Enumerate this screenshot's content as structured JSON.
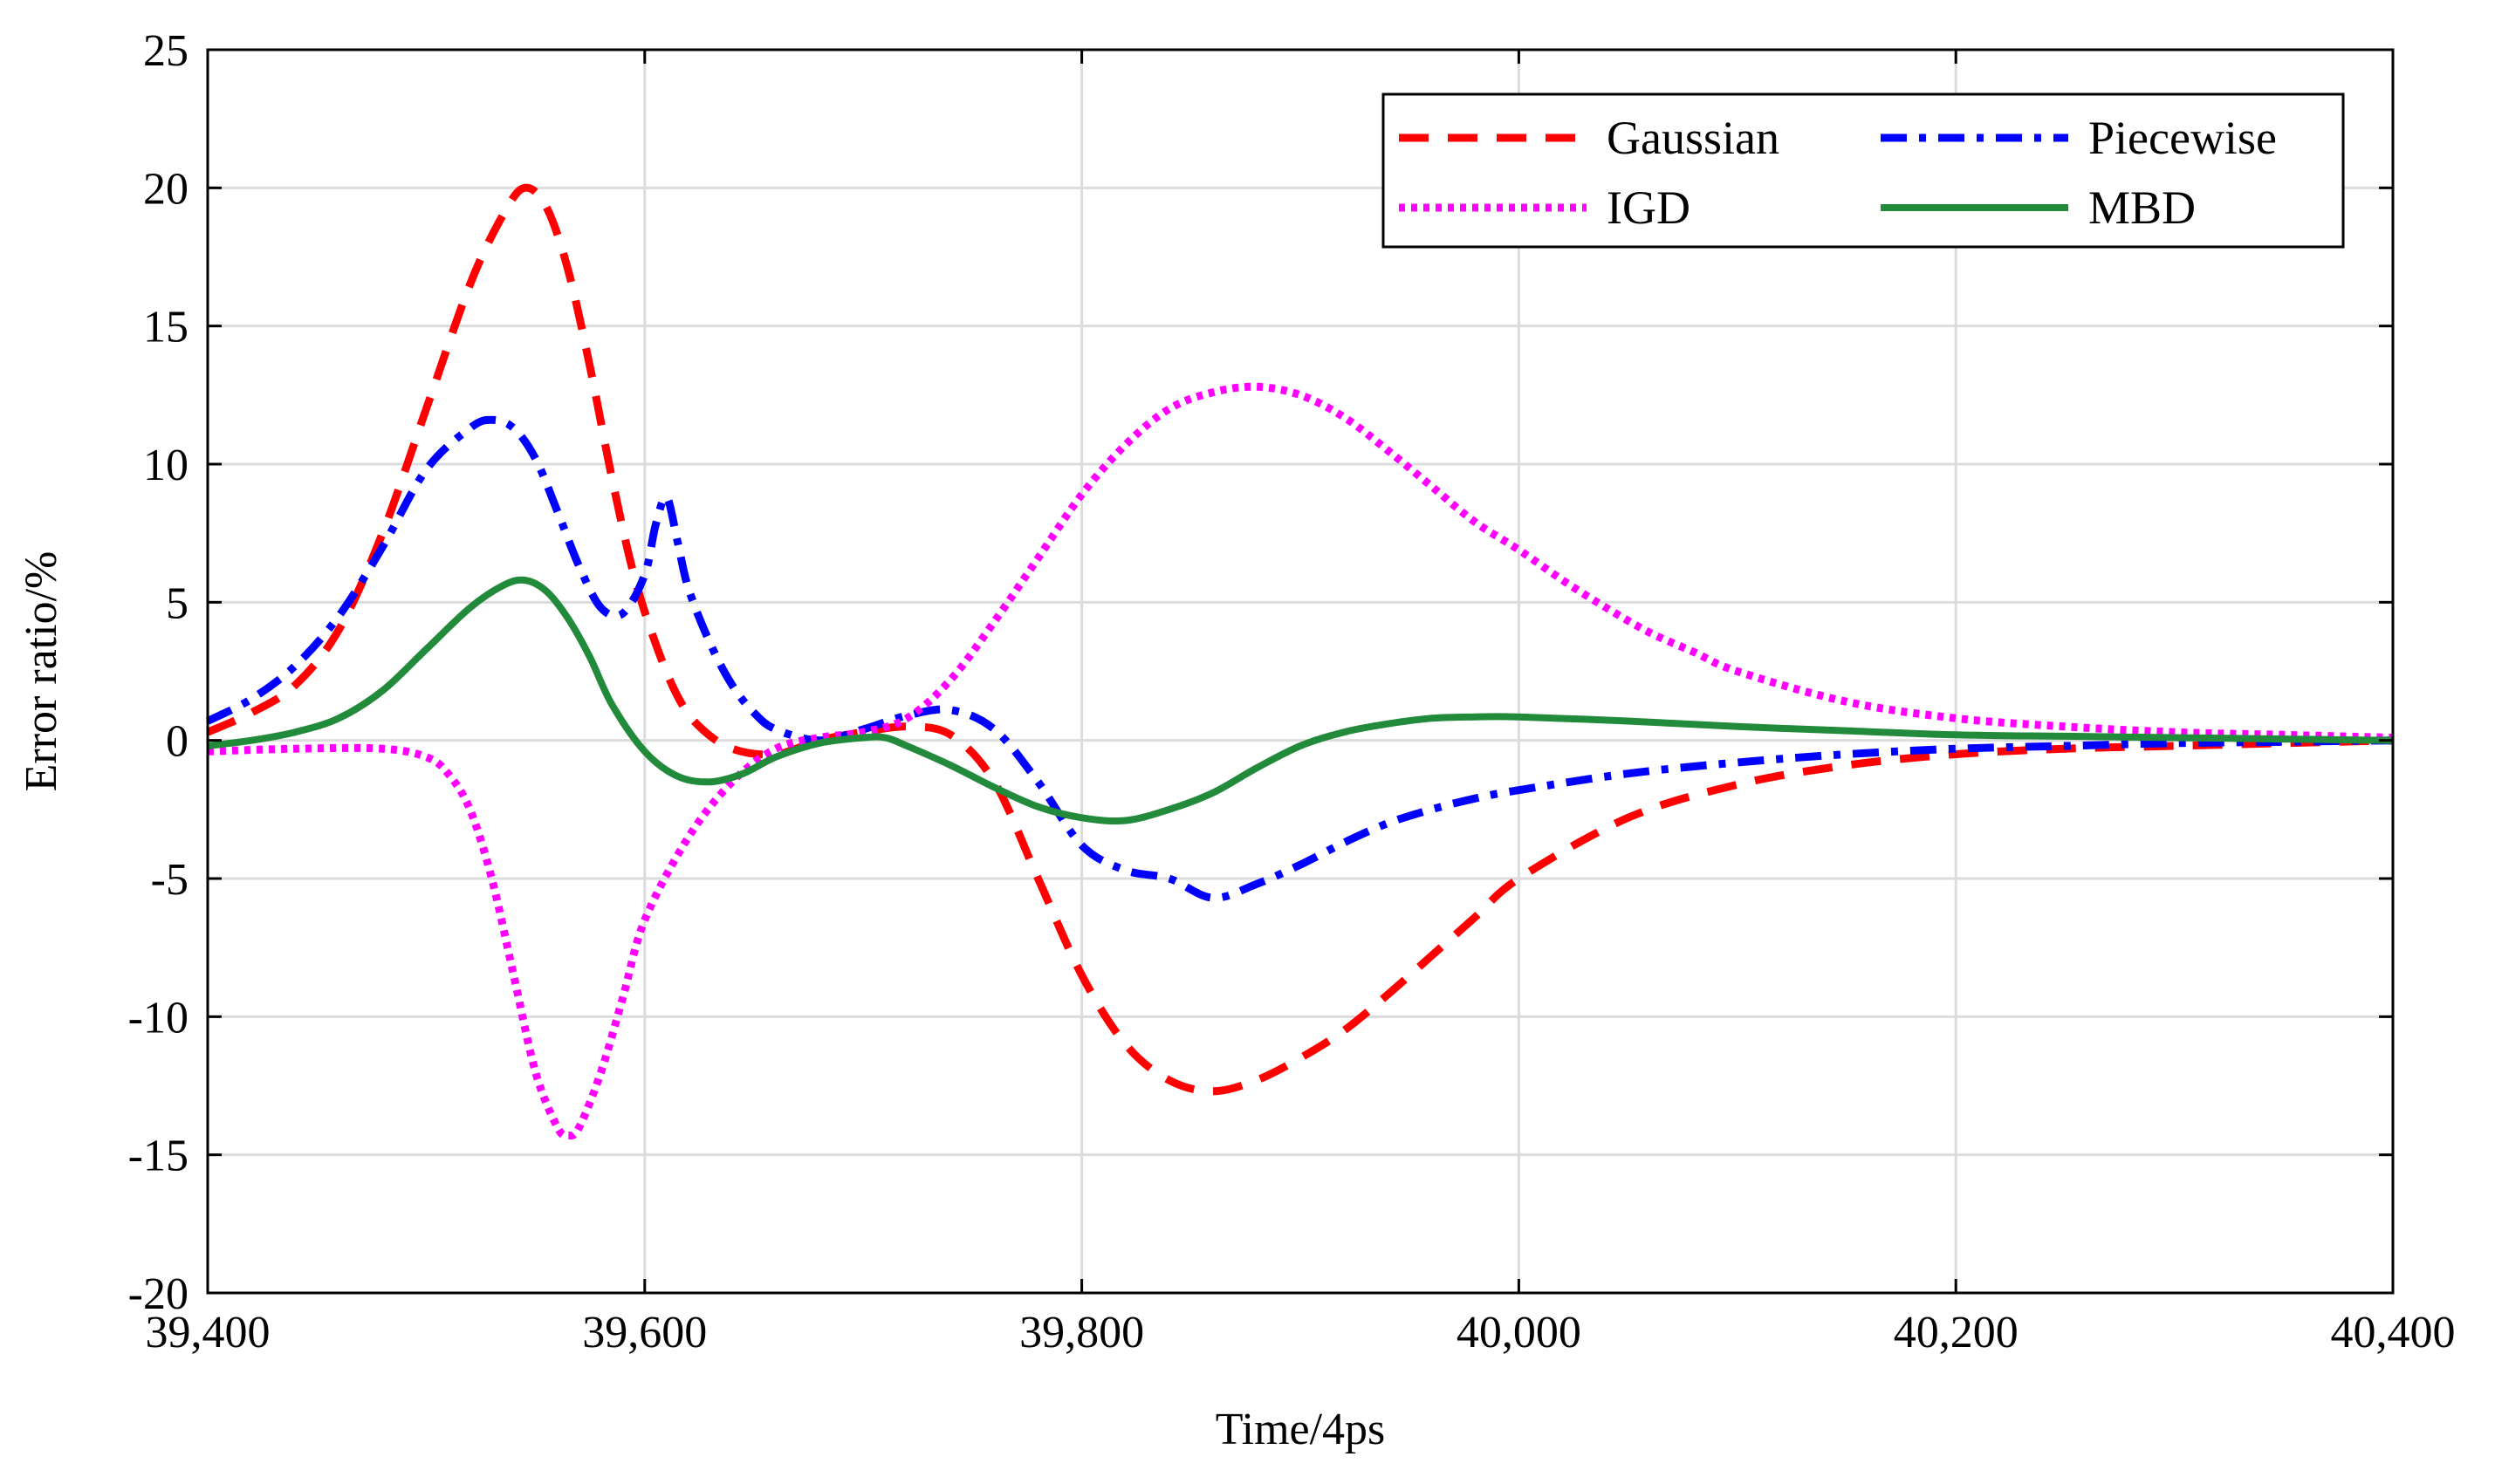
{
  "chart_data": {
    "type": "line",
    "title": "",
    "xlabel": "Time/4ps",
    "ylabel": "Error ratio/%",
    "xlim": [
      39400,
      40400
    ],
    "ylim": [
      -20,
      25
    ],
    "grid": true,
    "legend_position": "top-right",
    "xticks": [
      39400,
      39600,
      39800,
      40000,
      40200,
      40400
    ],
    "xtick_labels": [
      "39,400",
      "39,600",
      "39,800",
      "40,000",
      "40,200",
      "40,400"
    ],
    "yticks": [
      25,
      20,
      15,
      10,
      5,
      0,
      -5,
      -10,
      -15,
      -20
    ],
    "ytick_labels": [
      "25",
      "20",
      "15",
      "10",
      "5",
      "0",
      "-5",
      "-10",
      "-15",
      "-20"
    ],
    "series": [
      {
        "name": "Gaussian",
        "color": "#ff0000",
        "style": "dashed",
        "x": [
          39400,
          39420,
          39440,
          39460,
          39480,
          39500,
          39520,
          39535,
          39545,
          39555,
          39565,
          39575,
          39585,
          39595,
          39605,
          39615,
          39625,
          39640,
          39660,
          39680,
          39700,
          39720,
          39740,
          39760,
          39780,
          39800,
          39820,
          39840,
          39860,
          39880,
          39900,
          39920,
          39940,
          39960,
          39980,
          40000,
          40050,
          40100,
          40150,
          40200,
          40250,
          40300,
          40350,
          40400
        ],
        "y": [
          0.3,
          1.0,
          2.0,
          4.0,
          7.5,
          12.0,
          16.5,
          19.0,
          20.0,
          19.3,
          17.0,
          13.5,
          9.5,
          6.0,
          3.5,
          1.6,
          0.5,
          -0.3,
          -0.5,
          0.0,
          0.3,
          0.5,
          0.2,
          -1.5,
          -5.0,
          -8.5,
          -11.0,
          -12.3,
          -12.7,
          -12.3,
          -11.5,
          -10.5,
          -9.2,
          -7.8,
          -6.4,
          -5.0,
          -2.8,
          -1.6,
          -0.9,
          -0.5,
          -0.3,
          -0.2,
          -0.1,
          0.0
        ]
      },
      {
        "name": "Piecewise",
        "color": "#0000ff",
        "style": "dash-dot",
        "x": [
          39400,
          39420,
          39440,
          39460,
          39480,
          39500,
          39520,
          39530,
          39540,
          39550,
          39560,
          39570,
          39580,
          39590,
          39600,
          39605,
          39610,
          39615,
          39620,
          39630,
          39640,
          39650,
          39660,
          39680,
          39700,
          39720,
          39740,
          39760,
          39780,
          39800,
          39820,
          39840,
          39860,
          39880,
          39900,
          39920,
          39940,
          39960,
          39980,
          40000,
          40050,
          40100,
          40150,
          40200,
          40250,
          40300,
          40350,
          40400
        ],
        "y": [
          0.7,
          1.5,
          2.7,
          4.5,
          7.0,
          9.8,
          11.3,
          11.6,
          11.3,
          10.2,
          8.3,
          6.3,
          4.8,
          4.6,
          6.0,
          7.8,
          8.8,
          7.2,
          5.5,
          3.5,
          2.0,
          1.0,
          0.4,
          0.0,
          0.4,
          0.9,
          1.1,
          0.4,
          -1.5,
          -3.8,
          -4.7,
          -5.0,
          -5.7,
          -5.2,
          -4.5,
          -3.7,
          -3.0,
          -2.5,
          -2.1,
          -1.8,
          -1.2,
          -0.8,
          -0.5,
          -0.3,
          -0.2,
          -0.1,
          -0.05,
          0.0
        ]
      },
      {
        "name": "IGD",
        "color": "#ff00ff",
        "style": "dotted",
        "x": [
          39400,
          39440,
          39480,
          39500,
          39510,
          39520,
          39530,
          39540,
          39550,
          39560,
          39565,
          39570,
          39580,
          39590,
          39600,
          39620,
          39640,
          39660,
          39680,
          39700,
          39720,
          39740,
          39760,
          39780,
          39800,
          39820,
          39840,
          39860,
          39880,
          39900,
          39920,
          39940,
          39960,
          39980,
          40000,
          40020,
          40040,
          40060,
          40080,
          40100,
          40150,
          40200,
          40250,
          40300,
          40350,
          40400
        ],
        "y": [
          -0.4,
          -0.3,
          -0.3,
          -0.6,
          -1.2,
          -2.5,
          -5.0,
          -8.5,
          -12.0,
          -14.0,
          -14.3,
          -14.0,
          -12.0,
          -9.3,
          -6.5,
          -3.5,
          -1.5,
          -0.3,
          0.1,
          0.3,
          0.8,
          2.2,
          4.3,
          6.6,
          8.9,
          10.7,
          12.0,
          12.6,
          12.8,
          12.5,
          11.7,
          10.5,
          9.2,
          7.9,
          6.9,
          5.8,
          4.8,
          3.9,
          3.2,
          2.5,
          1.4,
          0.8,
          0.5,
          0.3,
          0.2,
          0.1
        ]
      },
      {
        "name": "MBD",
        "color": "#228b3b",
        "style": "solid",
        "x": [
          39400,
          39420,
          39440,
          39460,
          39480,
          39500,
          39520,
          39535,
          39545,
          39555,
          39565,
          39575,
          39585,
          39600,
          39615,
          39630,
          39645,
          39660,
          39680,
          39700,
          39710,
          39720,
          39740,
          39760,
          39780,
          39800,
          39820,
          39840,
          39860,
          39880,
          39900,
          39920,
          39940,
          39960,
          39980,
          40000,
          40050,
          40100,
          40150,
          40200,
          40250,
          40300,
          40350,
          40400
        ],
        "y": [
          -0.2,
          0.0,
          0.3,
          0.8,
          1.8,
          3.3,
          4.8,
          5.6,
          5.8,
          5.4,
          4.4,
          3.0,
          1.3,
          -0.4,
          -1.3,
          -1.5,
          -1.2,
          -0.6,
          -0.1,
          0.1,
          0.1,
          -0.2,
          -0.9,
          -1.7,
          -2.4,
          -2.8,
          -2.9,
          -2.5,
          -1.9,
          -1.0,
          -0.2,
          0.3,
          0.6,
          0.8,
          0.85,
          0.85,
          0.7,
          0.5,
          0.35,
          0.2,
          0.15,
          0.1,
          0.05,
          0.0
        ]
      }
    ]
  }
}
